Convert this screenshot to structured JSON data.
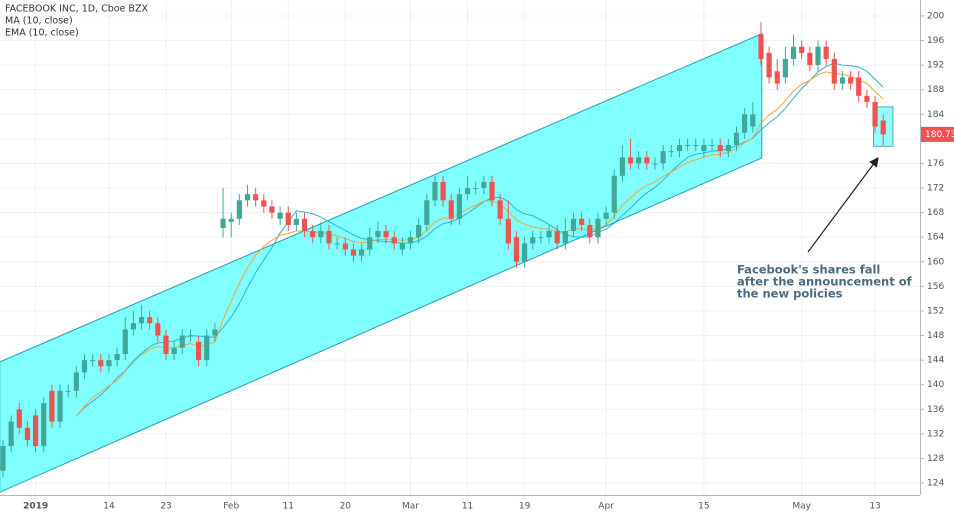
{
  "chart_data": {
    "type": "candlestick",
    "title": "FACEBOOK INC, 1D, Cboe BZX",
    "categories": [
      null,
      null,
      null,
      null,
      "2019",
      null,
      null,
      null,
      null,
      null,
      null,
      null,
      null,
      "14",
      null,
      null,
      null,
      null,
      null,
      null,
      "23",
      null,
      null,
      null,
      null,
      null,
      null,
      null,
      "Feb",
      null,
      null,
      null,
      null,
      null,
      null,
      "11",
      null,
      null,
      null,
      null,
      null,
      null,
      "20",
      null,
      null,
      null,
      null,
      null,
      null,
      null,
      "Mar",
      null,
      null,
      null,
      null,
      null,
      null,
      "11",
      null,
      null,
      null,
      null,
      null,
      null,
      "19",
      null,
      null,
      null,
      null,
      null,
      null,
      null,
      null,
      null,
      "Apr",
      null,
      null,
      null,
      null,
      null,
      null,
      null,
      null,
      null,
      null,
      null,
      "15",
      null,
      null,
      null,
      null,
      null,
      null,
      null,
      null,
      null,
      null,
      null,
      "May",
      null,
      null,
      null,
      null,
      null,
      null,
      null,
      null,
      "13",
      null
    ],
    "open": [
      126,
      130,
      136,
      133,
      135,
      130,
      139,
      134,
      139,
      139,
      142,
      144,
      144,
      143,
      144,
      145,
      149,
      150,
      151,
      150,
      148,
      145,
      146,
      148,
      147,
      144,
      148,
      165.5,
      166.5,
      167,
      170,
      171,
      170,
      169,
      167,
      168,
      166,
      167,
      165,
      164,
      165,
      163,
      163,
      162,
      161,
      162,
      164,
      165,
      164,
      162,
      163,
      164,
      166,
      170,
      173,
      170,
      167,
      171,
      172,
      172,
      173,
      170,
      167,
      164,
      160,
      163,
      164,
      164,
      165,
      163,
      165,
      167,
      166,
      164,
      167,
      168,
      174,
      177,
      176,
      177,
      176,
      176,
      178,
      178,
      179,
      179,
      178,
      179,
      179,
      178,
      179,
      181,
      182,
      197,
      194,
      191,
      190,
      193,
      195,
      194,
      192,
      195,
      193,
      189,
      190,
      190,
      187,
      186,
      183
    ],
    "high": [
      131,
      135,
      137,
      134,
      136,
      138,
      140,
      140,
      140,
      143,
      145,
      145,
      145,
      145,
      146,
      151,
      152,
      153,
      152,
      151,
      149,
      147,
      149,
      149,
      148,
      149,
      150,
      172,
      168,
      171,
      172.5,
      172,
      171,
      170,
      169,
      169,
      168,
      168,
      166,
      166.5,
      166,
      164,
      164,
      163,
      163,
      165.5,
      166.5,
      166,
      165,
      164,
      165,
      167,
      171,
      174,
      174,
      171,
      172,
      174,
      173,
      174,
      174,
      171,
      170,
      165,
      164,
      165,
      165,
      166,
      166,
      167,
      168,
      168,
      167,
      168,
      169,
      175,
      179,
      180,
      178,
      178,
      177,
      179,
      179,
      180,
      180,
      180,
      180,
      180,
      180,
      180,
      182,
      185,
      186,
      199,
      195,
      193,
      195,
      197,
      196,
      195,
      196,
      196,
      194,
      191,
      191,
      191,
      188,
      187,
      184
    ],
    "low": [
      125,
      129,
      132,
      130,
      129,
      129,
      133,
      133,
      138,
      138,
      141,
      143,
      142,
      142,
      143,
      144,
      148,
      149,
      149,
      147,
      144,
      144,
      145,
      147,
      143,
      143,
      147,
      164,
      164,
      166,
      169,
      169,
      168,
      167,
      166,
      165,
      165,
      164,
      163,
      163,
      162,
      162,
      161,
      160,
      160,
      161,
      163,
      163,
      162,
      161,
      162,
      163,
      165,
      169,
      169,
      166,
      166,
      170,
      171,
      171,
      169,
      166,
      162,
      159,
      159,
      162,
      163,
      163,
      162,
      162,
      164,
      165,
      163,
      163,
      166,
      167,
      173,
      175,
      175,
      175,
      175,
      175,
      177,
      177,
      178,
      178,
      177,
      178,
      177,
      177,
      178,
      180,
      181,
      192,
      189,
      188,
      189,
      192,
      193,
      191,
      191,
      192,
      188,
      188,
      188,
      186,
      185,
      181,
      179
    ],
    "close": [
      130,
      134,
      133,
      131,
      130,
      137,
      134,
      139,
      139,
      142,
      144,
      144,
      143,
      144,
      145,
      149,
      150,
      151,
      150,
      148,
      145,
      146,
      148,
      148,
      144,
      148,
      149,
      167,
      167,
      170,
      171,
      170,
      169,
      168,
      168,
      166,
      167,
      165,
      164,
      165,
      163,
      163,
      162,
      161,
      162,
      164,
      165,
      164,
      163,
      163,
      164,
      166,
      170,
      173,
      170,
      167,
      171,
      172,
      172,
      173,
      170,
      167,
      163,
      160,
      163,
      164,
      164,
      165,
      163,
      165,
      167,
      166,
      164,
      167,
      168,
      174,
      177,
      176,
      177,
      176,
      176,
      178,
      178,
      179,
      179,
      179,
      179,
      179,
      178,
      179,
      181,
      184,
      184,
      193,
      190,
      189,
      193,
      195,
      194,
      192,
      195,
      193,
      189,
      190,
      189,
      187,
      186,
      182,
      180.73
    ],
    "up_color": "#3fa89a",
    "down_color": "#ef5350",
    "overlays": [
      {
        "name": "MA (10, close)",
        "color": "#2fb4d6",
        "values": [
          null,
          null,
          null,
          null,
          null,
          null,
          null,
          null,
          null,
          134.9,
          136.3,
          137.3,
          138.3,
          139.6,
          141.1,
          142.3,
          143.9,
          145.1,
          146.2,
          146.8,
          146.9,
          147.1,
          147.6,
          148.0,
          147.9,
          147.8,
          147.7,
          149.3,
          151.0,
          153.2,
          155.8,
          158.2,
          160.3,
          162.3,
          164.7,
          166.5,
          168.3,
          168.1,
          167.8,
          167.3,
          166.5,
          165.8,
          165.1,
          164.4,
          163.8,
          163.6,
          163.4,
          163.3,
          163.2,
          163.0,
          163.1,
          163.4,
          164.2,
          165.4,
          166.2,
          166.5,
          167.1,
          167.9,
          168.8,
          169.8,
          170.4,
          170.5,
          169.8,
          168.5,
          167.8,
          167.5,
          166.8,
          166.1,
          165.2,
          164.4,
          164.1,
          164.0,
          164.1,
          164.8,
          165.3,
          166.3,
          167.6,
          168.7,
          170.1,
          171.2,
          172.1,
          173.3,
          174.7,
          175.9,
          177.0,
          177.5,
          177.7,
          178.0,
          178.1,
          178.4,
          178.9,
          179.5,
          180.1,
          181.5,
          182.6,
          183.6,
          185.0,
          186.6,
          188.2,
          189.5,
          190.9,
          191.8,
          192.3,
          192.0,
          191.9,
          191.7,
          191.0,
          189.7,
          188.4
        ]
      },
      {
        "name": "EMA (10, close)",
        "color": "#f5a33a",
        "values": [
          null,
          null,
          null,
          null,
          null,
          null,
          null,
          null,
          null,
          134.9,
          136.5,
          137.9,
          138.8,
          139.8,
          140.7,
          142.2,
          143.6,
          144.9,
          145.8,
          146.2,
          146.0,
          146.0,
          146.4,
          146.7,
          146.2,
          146.5,
          147.0,
          150.6,
          153.5,
          156.5,
          159.1,
          161.1,
          162.5,
          163.5,
          164.3,
          164.6,
          165.0,
          165.0,
          164.8,
          164.8,
          164.5,
          164.2,
          163.8,
          163.3,
          163.1,
          163.3,
          163.6,
          163.7,
          163.6,
          163.5,
          163.6,
          164.0,
          165.1,
          166.5,
          167.1,
          167.1,
          167.8,
          168.6,
          169.2,
          169.9,
          169.9,
          169.4,
          168.2,
          166.8,
          166.1,
          165.7,
          165.4,
          165.3,
          164.9,
          164.9,
          165.3,
          165.4,
          165.1,
          165.5,
          166.0,
          167.4,
          169.2,
          170.4,
          171.6,
          172.4,
          173.0,
          173.9,
          174.6,
          175.4,
          176.1,
          176.6,
          177.0,
          177.4,
          177.5,
          177.8,
          178.4,
          179.4,
          180.2,
          182.5,
          183.9,
          184.8,
          186.2,
          187.8,
          188.9,
          189.5,
          190.5,
          190.9,
          190.6,
          190.5,
          190.2,
          189.6,
          189.0,
          187.7,
          186.5
        ]
      }
    ],
    "channel": {
      "color": "#80ffff",
      "x": [
        -0.4,
        93.1
      ],
      "upper": [
        143.7,
        197.1
      ],
      "lower": [
        122.5,
        176.9
      ]
    },
    "highlight": {
      "color": "#80ffff",
      "x": [
        106.8,
        109.2
      ],
      "y": [
        178.8,
        185.2
      ]
    },
    "annotation": [
      "Facebook's shares fall",
      "after the announcement of",
      "the new policies"
    ],
    "ylim": [
      122.05,
      202.6
    ],
    "yticks": [
      124,
      128,
      132,
      136,
      140,
      144,
      148,
      152,
      156,
      160,
      164,
      168,
      172,
      176,
      180,
      184,
      188,
      192,
      196,
      200
    ],
    "grid": true
  }
}
